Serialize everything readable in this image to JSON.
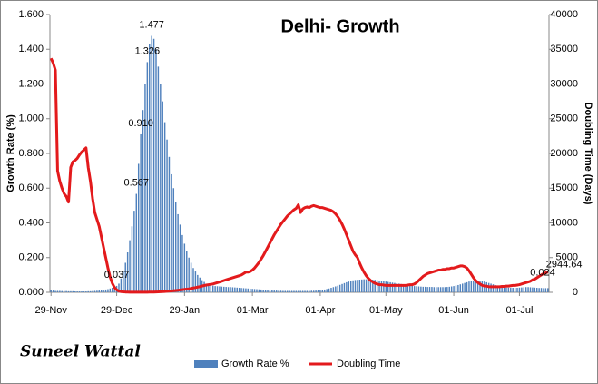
{
  "chart_data": {
    "type": "bar-line",
    "title": "Delhi- Growth",
    "y_label": "Growth Rate (%)",
    "y2_label": "Doubling Time (Days)",
    "signature": "Suneel Wattal",
    "categories": [
      "29-Nov",
      null,
      null,
      null,
      null,
      null,
      null,
      null,
      null,
      null,
      null,
      null,
      null,
      null,
      null,
      null,
      null,
      null,
      null,
      null,
      null,
      null,
      null,
      null,
      null,
      null,
      null,
      null,
      null,
      null,
      "29-Dec",
      null,
      null,
      null,
      null,
      null,
      null,
      null,
      null,
      null,
      null,
      null,
      null,
      null,
      null,
      null,
      null,
      null,
      null,
      null,
      null,
      null,
      null,
      null,
      null,
      null,
      null,
      null,
      null,
      null,
      null,
      "29-Jan",
      null,
      null,
      null,
      null,
      null,
      null,
      null,
      null,
      null,
      null,
      null,
      null,
      null,
      null,
      null,
      null,
      null,
      null,
      null,
      null,
      null,
      null,
      null,
      null,
      null,
      null,
      null,
      null,
      null,
      null,
      "01-Mar",
      null,
      null,
      null,
      null,
      null,
      null,
      null,
      null,
      null,
      null,
      null,
      null,
      null,
      null,
      null,
      null,
      null,
      null,
      null,
      null,
      null,
      null,
      null,
      null,
      null,
      null,
      null,
      null,
      null,
      null,
      "01-Apr",
      null,
      null,
      null,
      null,
      null,
      null,
      null,
      null,
      null,
      null,
      null,
      null,
      null,
      null,
      null,
      null,
      null,
      null,
      null,
      null,
      null,
      null,
      null,
      null,
      null,
      null,
      null,
      null,
      null,
      "01-May",
      null,
      null,
      null,
      null,
      null,
      null,
      null,
      null,
      null,
      null,
      null,
      null,
      null,
      null,
      null,
      null,
      null,
      null,
      null,
      null,
      null,
      null,
      null,
      null,
      null,
      null,
      null,
      null,
      null,
      null,
      "01-Jun",
      null,
      null,
      null,
      null,
      null,
      null,
      null,
      null,
      null,
      null,
      null,
      null,
      null,
      null,
      null,
      null,
      null,
      null,
      null,
      null,
      null,
      null,
      null,
      null,
      null,
      null,
      null,
      null,
      null,
      "01-Jul",
      null,
      null,
      null,
      null,
      null,
      null,
      null,
      null,
      null,
      null,
      null,
      null,
      null
    ],
    "series": [
      {
        "name": "Growth Rate %",
        "color": "#4f81bd",
        "values": [
          0.012,
          0.01,
          0.008,
          0.008,
          0.008,
          0.007,
          0.007,
          0.007,
          0.006,
          0.006,
          0.006,
          0.005,
          0.005,
          0.005,
          0.005,
          0.005,
          0.005,
          0.006,
          0.006,
          0.007,
          0.008,
          0.009,
          0.01,
          0.012,
          0.014,
          0.016,
          0.018,
          0.022,
          0.026,
          0.03,
          0.037,
          0.05,
          0.08,
          0.12,
          0.17,
          0.23,
          0.3,
          0.38,
          0.47,
          0.567,
          0.74,
          0.91,
          1.05,
          1.2,
          1.326,
          1.43,
          1.477,
          1.46,
          1.4,
          1.3,
          1.2,
          1.1,
          0.98,
          0.88,
          0.78,
          0.68,
          0.6,
          0.52,
          0.45,
          0.39,
          0.33,
          0.28,
          0.24,
          0.2,
          0.17,
          0.14,
          0.12,
          0.1,
          0.085,
          0.07,
          0.06,
          0.05,
          0.045,
          0.04,
          0.038,
          0.036,
          0.035,
          0.034,
          0.033,
          0.032,
          0.031,
          0.03,
          0.03,
          0.029,
          0.028,
          0.027,
          0.026,
          0.025,
          0.024,
          0.023,
          0.022,
          0.021,
          0.02,
          0.019,
          0.018,
          0.017,
          0.016,
          0.015,
          0.014,
          0.013,
          0.012,
          0.011,
          0.01,
          0.01,
          0.009,
          0.009,
          0.008,
          0.008,
          0.008,
          0.008,
          0.008,
          0.008,
          0.008,
          0.008,
          0.008,
          0.008,
          0.008,
          0.008,
          0.008,
          0.009,
          0.009,
          0.01,
          0.011,
          0.012,
          0.014,
          0.016,
          0.019,
          0.022,
          0.026,
          0.03,
          0.034,
          0.038,
          0.043,
          0.048,
          0.053,
          0.058,
          0.062,
          0.066,
          0.069,
          0.071,
          0.072,
          0.073,
          0.074,
          0.075,
          0.075,
          0.075,
          0.074,
          0.073,
          0.072,
          0.07,
          0.068,
          0.066,
          0.064,
          0.062,
          0.06,
          0.058,
          0.056,
          0.054,
          0.052,
          0.05,
          0.048,
          0.046,
          0.044,
          0.042,
          0.04,
          0.038,
          0.036,
          0.035,
          0.034,
          0.033,
          0.032,
          0.032,
          0.031,
          0.031,
          0.031,
          0.03,
          0.03,
          0.03,
          0.03,
          0.03,
          0.03,
          0.031,
          0.032,
          0.034,
          0.036,
          0.039,
          0.042,
          0.046,
          0.05,
          0.054,
          0.058,
          0.062,
          0.065,
          0.067,
          0.068,
          0.068,
          0.067,
          0.065,
          0.062,
          0.058,
          0.054,
          0.05,
          0.046,
          0.042,
          0.038,
          0.035,
          0.032,
          0.03,
          0.028,
          0.027,
          0.026,
          0.026,
          0.026,
          0.026,
          0.027,
          0.028,
          0.029,
          0.03,
          0.03,
          0.029,
          0.028,
          0.027,
          0.026,
          0.025,
          0.025,
          0.024,
          0.024,
          0.024
        ],
        "value_labels": [
          null,
          null,
          null,
          null,
          null,
          null,
          null,
          null,
          null,
          null,
          null,
          null,
          null,
          null,
          null,
          null,
          null,
          null,
          null,
          null,
          null,
          null,
          null,
          null,
          null,
          null,
          null,
          null,
          null,
          null,
          "0.037",
          null,
          null,
          null,
          null,
          null,
          null,
          null,
          null,
          "0.567",
          null,
          "0.910",
          null,
          null,
          "1.326",
          null,
          "1.477",
          null,
          null,
          null,
          null,
          null,
          null,
          null,
          null,
          null,
          null,
          null,
          null,
          null,
          null,
          null,
          null,
          null,
          null,
          null,
          null,
          null,
          null,
          null,
          null,
          null,
          null,
          null,
          null,
          null,
          null,
          null,
          null,
          null,
          null,
          null,
          null,
          null,
          null,
          null,
          null,
          null,
          null,
          null,
          null,
          null,
          null,
          null,
          null,
          null,
          null,
          null,
          null,
          null,
          null,
          null,
          null,
          null,
          null,
          null,
          null,
          null,
          null,
          null,
          null,
          null,
          null,
          null,
          null,
          null,
          null,
          null,
          null,
          null,
          null,
          null,
          null,
          null,
          null,
          null,
          null,
          null,
          null,
          null,
          null,
          null,
          null,
          null,
          null,
          null,
          null,
          null,
          null,
          null,
          null,
          null,
          null,
          null,
          null,
          null,
          null,
          null,
          null,
          null,
          null,
          null,
          null,
          null,
          null,
          null,
          null,
          null,
          null,
          null,
          null,
          null,
          null,
          null,
          null,
          null,
          null,
          null,
          null,
          null,
          null,
          null,
          null,
          null,
          null,
          null,
          null,
          null,
          null,
          null,
          null,
          null,
          null,
          null,
          null,
          null,
          null,
          null,
          null,
          null,
          null,
          null,
          null,
          null,
          null,
          null,
          null,
          null,
          null,
          null,
          null,
          null,
          null,
          null,
          null,
          null,
          null,
          null,
          null,
          null,
          null,
          null,
          null,
          null,
          null,
          null,
          null,
          null,
          null,
          null,
          null,
          null,
          null,
          null,
          null,
          null,
          null,
          "0.024"
        ]
      },
      {
        "name": "Doubling Time",
        "color": "#e31a1c",
        "axis": "y2",
        "values": [
          33700,
          33000,
          32000,
          17500,
          16000,
          15000,
          14200,
          13800,
          13000,
          18000,
          18800,
          19000,
          19300,
          19800,
          20200,
          20500,
          20800,
          18000,
          16000,
          13500,
          11500,
          10500,
          9500,
          8000,
          6500,
          5000,
          3500,
          2200,
          1300,
          700,
          350,
          180,
          100,
          60,
          40,
          30,
          20,
          20,
          20,
          20,
          20,
          20,
          20,
          20,
          20,
          30,
          30,
          40,
          50,
          60,
          80,
          100,
          120,
          150,
          180,
          200,
          230,
          260,
          300,
          340,
          380,
          420,
          460,
          500,
          560,
          620,
          680,
          750,
          820,
          900,
          980,
          1050,
          1100,
          1150,
          1200,
          1300,
          1400,
          1500,
          1600,
          1700,
          1800,
          1900,
          2000,
          2100,
          2200,
          2300,
          2400,
          2500,
          2700,
          2900,
          2900,
          3000,
          3200,
          3500,
          3900,
          4300,
          4800,
          5300,
          5900,
          6500,
          7100,
          7700,
          8300,
          8800,
          9300,
          9800,
          10200,
          10600,
          11000,
          11300,
          11600,
          11900,
          12100,
          12600,
          11500,
          12000,
          12200,
          12300,
          12200,
          12400,
          12500,
          12400,
          12300,
          12200,
          12200,
          12100,
          12000,
          11900,
          11800,
          11600,
          11300,
          10900,
          10400,
          9800,
          9100,
          8300,
          7500,
          6700,
          5900,
          5400,
          5000,
          4200,
          3500,
          2900,
          2400,
          2000,
          1700,
          1500,
          1300,
          1200,
          1100,
          1100,
          1050,
          1000,
          1000,
          1000,
          1000,
          1000,
          1000,
          1000,
          1000,
          1000,
          1000,
          1050,
          1100,
          1100,
          1200,
          1400,
          1700,
          2000,
          2300,
          2500,
          2700,
          2800,
          2900,
          3000,
          3100,
          3200,
          3200,
          3300,
          3300,
          3400,
          3400,
          3500,
          3500,
          3600,
          3700,
          3800,
          3800,
          3700,
          3500,
          3100,
          2600,
          2100,
          1700,
          1400,
          1200,
          1000,
          900,
          900,
          800,
          800,
          800,
          800,
          800,
          800,
          850,
          850,
          900,
          900,
          950,
          1000,
          1000,
          1050,
          1100,
          1200,
          1300,
          1400,
          1500,
          1600,
          1800,
          1900,
          2100,
          2300,
          2500,
          2700,
          2800,
          2944.64
        ],
        "value_labels": [
          null,
          null,
          null,
          null,
          null,
          null,
          null,
          null,
          null,
          null,
          null,
          null,
          null,
          null,
          null,
          null,
          null,
          null,
          null,
          null,
          null,
          null,
          null,
          null,
          null,
          null,
          null,
          null,
          null,
          null,
          null,
          null,
          null,
          null,
          null,
          null,
          null,
          null,
          null,
          null,
          null,
          null,
          null,
          null,
          null,
          null,
          null,
          null,
          null,
          null,
          null,
          null,
          null,
          null,
          null,
          null,
          null,
          null,
          null,
          null,
          null,
          null,
          null,
          null,
          null,
          null,
          null,
          null,
          null,
          null,
          null,
          null,
          null,
          null,
          null,
          null,
          null,
          null,
          null,
          null,
          null,
          null,
          null,
          null,
          null,
          null,
          null,
          null,
          null,
          null,
          null,
          null,
          null,
          null,
          null,
          null,
          null,
          null,
          null,
          null,
          null,
          null,
          null,
          null,
          null,
          null,
          null,
          null,
          null,
          null,
          null,
          null,
          null,
          null,
          null,
          null,
          null,
          null,
          null,
          null,
          null,
          null,
          null,
          null,
          null,
          null,
          null,
          null,
          null,
          null,
          null,
          null,
          null,
          null,
          null,
          null,
          null,
          null,
          null,
          null,
          null,
          null,
          null,
          null,
          null,
          null,
          null,
          null,
          null,
          null,
          null,
          null,
          null,
          null,
          null,
          null,
          null,
          null,
          null,
          null,
          null,
          null,
          null,
          null,
          null,
          null,
          null,
          null,
          null,
          null,
          null,
          null,
          null,
          null,
          null,
          null,
          null,
          null,
          null,
          null,
          null,
          null,
          null,
          null,
          null,
          null,
          null,
          null,
          null,
          null,
          null,
          null,
          null,
          null,
          null,
          null,
          null,
          null,
          null,
          null,
          null,
          null,
          null,
          null,
          null,
          null,
          null,
          null,
          null,
          null,
          null,
          null,
          null,
          null,
          null,
          null,
          null,
          null,
          null,
          null,
          null,
          null,
          null,
          null,
          null,
          null,
          null,
          "2944.64"
        ]
      }
    ],
    "ylim": [
      0,
      1.6
    ],
    "yticks": [
      {
        "value": 0,
        "label": "0.000"
      },
      {
        "value": 0.2,
        "label": "0.200"
      },
      {
        "value": 0.4,
        "label": "0.400"
      },
      {
        "value": 0.6,
        "label": "0.600"
      },
      {
        "value": 0.8,
        "label": "0.800"
      },
      {
        "value": 1.0,
        "label": "1.000"
      },
      {
        "value": 1.2,
        "label": "1.200"
      },
      {
        "value": 1.4,
        "label": "1.400"
      },
      {
        "value": 1.6,
        "label": "1.600"
      }
    ],
    "y2lim": [
      0,
      40000
    ],
    "y2ticks": [
      0,
      5000,
      10000,
      15000,
      20000,
      25000,
      30000,
      35000,
      40000
    ],
    "grid": false
  }
}
